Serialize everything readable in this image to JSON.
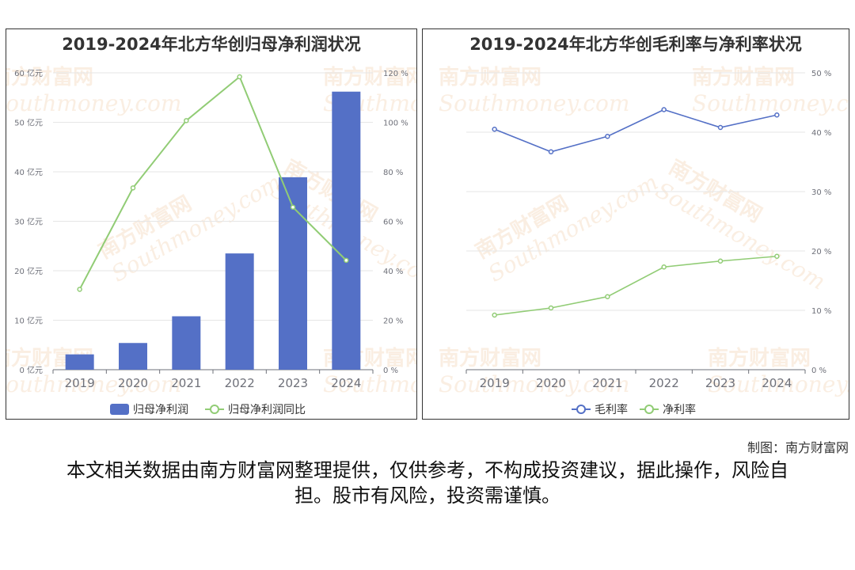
{
  "credit": "制图：南方财富网",
  "disclaimer": "本文相关数据由南方财富网整理提供，仅供参考，不构成投资建议，据此操作，风险自担。股市有风险，投资需谨慎。",
  "watermark": {
    "cn": "南方财富网",
    "en": "Southmoney.com"
  },
  "colors": {
    "bar": "#5470c6",
    "green": "#91cc75",
    "blue": "#5470c6"
  },
  "chart_data": [
    {
      "type": "bar",
      "title": "2019-2024年北方华创归母净利润状况",
      "categories": [
        "2019",
        "2020",
        "2021",
        "2022",
        "2023",
        "2024"
      ],
      "series": [
        {
          "name": "归母净利润",
          "type": "bar",
          "axis": "left",
          "values": [
            3.1,
            5.4,
            10.8,
            23.5,
            38.9,
            56.2
          ]
        },
        {
          "name": "归母净利润同比",
          "type": "line",
          "axis": "right",
          "values": [
            32.5,
            73.5,
            100.7,
            118.4,
            65.7,
            44.2
          ]
        }
      ],
      "y_left": {
        "ylim": [
          0,
          60
        ],
        "ticks": [
          0,
          10,
          20,
          30,
          40,
          50,
          60
        ],
        "tick_labels": [
          "0 亿元",
          "10 亿元",
          "20 亿元",
          "30 亿元",
          "40 亿元",
          "50 亿元",
          "60 亿元"
        ]
      },
      "y_right": {
        "ylim": [
          0,
          120
        ],
        "ticks": [
          0,
          20,
          40,
          60,
          80,
          100,
          120
        ],
        "tick_labels": [
          "0 %",
          "20 %",
          "40 %",
          "60 %",
          "80 %",
          "100 %",
          "120 %"
        ]
      },
      "grid": true,
      "legend": "bottom"
    },
    {
      "type": "line",
      "title": "2019-2024年北方华创毛利率与净利率状况",
      "categories": [
        "2019",
        "2020",
        "2021",
        "2022",
        "2023",
        "2024"
      ],
      "series": [
        {
          "name": "毛利率",
          "values": [
            40.5,
            36.7,
            39.3,
            43.8,
            40.8,
            42.9
          ]
        },
        {
          "name": "净利率",
          "values": [
            9.2,
            10.4,
            12.3,
            17.3,
            18.3,
            19.1
          ]
        }
      ],
      "y_right": {
        "ylim": [
          0,
          50
        ],
        "ticks": [
          0,
          10,
          20,
          30,
          40,
          50
        ],
        "tick_labels": [
          "0 %",
          "10 %",
          "20 %",
          "30 %",
          "40 %",
          "50 %"
        ]
      },
      "grid": true,
      "legend": "bottom"
    }
  ]
}
